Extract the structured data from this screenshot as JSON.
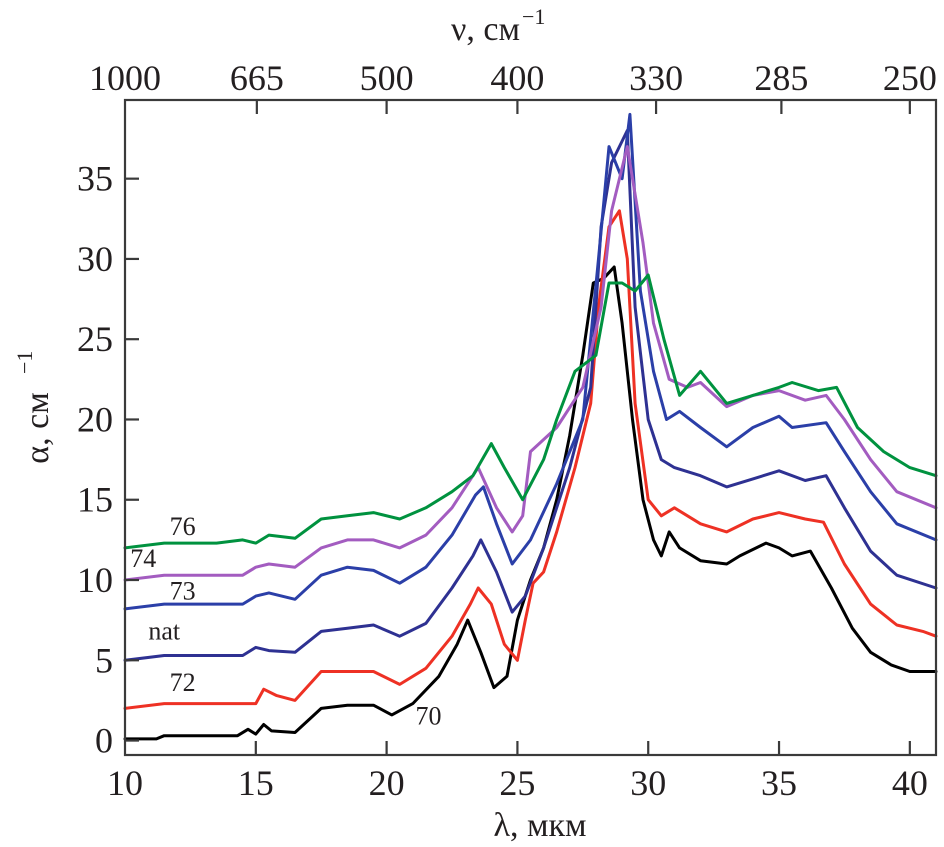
{
  "chart_data": {
    "type": "line",
    "title": "",
    "xlabel": "λ, мкм",
    "ylabel": "α, см",
    "ylabel_superscript": "−1",
    "x2label": "ν, см",
    "x2label_superscript": "−1",
    "xlim": [
      10,
      41
    ],
    "ylim": [
      -0.9,
      39.9
    ],
    "grid": false,
    "legend": "inline labels at left of each curve",
    "x_ticks": [
      10,
      15,
      20,
      25,
      30,
      35,
      40
    ],
    "x_tick_labels": [
      "10",
      "15",
      "20",
      "25",
      "30",
      "35",
      "40"
    ],
    "y_ticks": [
      0,
      5,
      10,
      15,
      20,
      25,
      30,
      35
    ],
    "y_tick_labels": [
      "0",
      "5",
      "10",
      "15",
      "20",
      "25",
      "30",
      "35"
    ],
    "x2_ticks_lambda": [
      10,
      15.04,
      20,
      25,
      30.3,
      35.09,
      40
    ],
    "x2_tick_labels": [
      "1000",
      "665",
      "500",
      "400",
      "330",
      "285",
      "250"
    ],
    "series": [
      {
        "name": "70",
        "color": "#000000",
        "label_at": [
          21.6,
          1.0
        ],
        "x": [
          10,
          11.2,
          11.5,
          14.3,
          14.7,
          15,
          15.3,
          15.6,
          16.5,
          17.5,
          18.5,
          19.5,
          20.2,
          21,
          22,
          22.7,
          23.1,
          23.6,
          24.1,
          24.6,
          25,
          25.5,
          26,
          26.5,
          27,
          27.5,
          27.9,
          28.3,
          28.7,
          29,
          29.4,
          29.8,
          30.2,
          30.5,
          30.8,
          31.2,
          32,
          33,
          33.5,
          34.5,
          35,
          35.5,
          36.2,
          37,
          37.8,
          38.5,
          39.3,
          40,
          41
        ],
        "y": [
          0.1,
          0.1,
          0.3,
          0.3,
          0.7,
          0.4,
          1.0,
          0.6,
          0.5,
          2.0,
          2.2,
          2.2,
          1.6,
          2.3,
          4.0,
          6.0,
          7.5,
          5.5,
          3.3,
          4.0,
          7.5,
          10,
          12,
          15,
          19,
          24,
          28.5,
          28.8,
          29.5,
          26,
          20,
          15,
          12.5,
          11.5,
          13,
          12,
          11.2,
          11.0,
          11.5,
          12.3,
          12.0,
          11.5,
          11.8,
          9.5,
          7.0,
          5.5,
          4.7,
          4.3,
          4.3
        ]
      },
      {
        "name": "72",
        "color": "#ee3124",
        "label_at": [
          12.2,
          3.1
        ],
        "x": [
          10,
          11.5,
          15,
          15.3,
          15.8,
          16.5,
          17.5,
          18.5,
          19.5,
          20.5,
          21.5,
          22.5,
          23.2,
          23.5,
          24,
          24.5,
          25,
          25.3,
          25.6,
          26,
          26.5,
          27.2,
          27.8,
          28.1,
          28.5,
          28.9,
          29.2,
          29.5,
          30,
          30.5,
          31,
          32,
          33,
          34,
          35,
          36,
          36.7,
          37.5,
          38.5,
          39.5,
          40.5,
          41
        ],
        "y": [
          2.0,
          2.3,
          2.3,
          3.2,
          2.8,
          2.5,
          4.3,
          4.3,
          4.3,
          3.5,
          4.5,
          6.5,
          8.5,
          9.5,
          8.5,
          6.0,
          5.0,
          7.5,
          9.8,
          10.5,
          13,
          17,
          21,
          27,
          32,
          33,
          30,
          21,
          15,
          14,
          14.5,
          13.5,
          13.0,
          13.8,
          14.2,
          13.8,
          13.6,
          11,
          8.5,
          7.2,
          6.8,
          6.5
        ]
      },
      {
        "name": "nat",
        "color": "#2e3192",
        "label_at": [
          11.5,
          6.3
        ],
        "x": [
          10,
          11.5,
          14.5,
          15,
          15.5,
          16.5,
          17.5,
          18.5,
          19.5,
          20.5,
          21.5,
          22.5,
          23.3,
          23.6,
          24.2,
          24.8,
          25.3,
          26,
          27,
          27.8,
          28.2,
          28.6,
          29.2,
          29.5,
          30,
          30.5,
          31,
          32,
          33,
          34,
          35,
          36,
          36.8,
          37.5,
          38.5,
          39.5,
          41
        ],
        "y": [
          5.0,
          5.3,
          5.3,
          5.8,
          5.6,
          5.5,
          6.8,
          7.0,
          7.2,
          6.5,
          7.3,
          9.5,
          11.5,
          12.5,
          10.5,
          8.0,
          9.0,
          12,
          17,
          22,
          32,
          36,
          38,
          27,
          20,
          17.5,
          17.0,
          16.5,
          15.8,
          16.3,
          16.8,
          16.2,
          16.5,
          14.5,
          11.8,
          10.3,
          9.5
        ]
      },
      {
        "name": "73",
        "color": "#2b3fa8",
        "label_at": [
          12.2,
          8.8
        ],
        "x": [
          10,
          11.5,
          14.5,
          15,
          15.5,
          16.5,
          17.5,
          18.5,
          19.5,
          20.5,
          21.5,
          22.5,
          23.4,
          23.7,
          24.2,
          24.8,
          25.5,
          26.5,
          27.5,
          28.1,
          28.5,
          29,
          29.3,
          29.7,
          30.2,
          30.7,
          31.2,
          32,
          33,
          34,
          35,
          35.5,
          36.8,
          37.5,
          38.5,
          39.5,
          41
        ],
        "y": [
          8.2,
          8.5,
          8.5,
          9.0,
          9.2,
          8.8,
          10.3,
          10.8,
          10.6,
          9.8,
          10.8,
          12.8,
          15.3,
          15.8,
          13.5,
          11.0,
          12.5,
          16,
          20,
          30,
          37,
          35,
          39,
          28,
          23,
          20,
          20.5,
          19.5,
          18.3,
          19.5,
          20.2,
          19.5,
          19.8,
          18,
          15.5,
          13.5,
          12.5
        ]
      },
      {
        "name": "74",
        "color": "#a35cc0",
        "label_at": [
          10.7,
          10.8
        ],
        "x": [
          10,
          11.5,
          14.5,
          15,
          15.5,
          16.5,
          17.5,
          18.5,
          19.5,
          20.5,
          21.5,
          22.5,
          23.5,
          24.2,
          24.8,
          25.2,
          25.5,
          26.5,
          27.5,
          28.2,
          28.6,
          29.2,
          29.8,
          30.2,
          30.8,
          31.5,
          32,
          33,
          34,
          35,
          36,
          36.8,
          37.5,
          38.5,
          39.5,
          41
        ],
        "y": [
          10.0,
          10.3,
          10.3,
          10.8,
          11.0,
          10.8,
          12.0,
          12.5,
          12.5,
          12.0,
          12.8,
          14.5,
          17.0,
          14.5,
          13.0,
          14.0,
          18.0,
          19.5,
          22,
          27,
          33,
          37,
          31,
          26,
          22.5,
          22.0,
          22.3,
          20.8,
          21.5,
          21.8,
          21.2,
          21.5,
          20,
          17.5,
          15.5,
          14.5
        ]
      },
      {
        "name": "76",
        "color": "#00923f",
        "label_at": [
          12.2,
          12.8
        ],
        "x": [
          10,
          11.5,
          13.5,
          14.5,
          15,
          15.5,
          16.5,
          17.5,
          18.5,
          19.5,
          20.5,
          21.5,
          22.5,
          23.3,
          24,
          24.5,
          25.2,
          26,
          26.5,
          27.2,
          28,
          28.5,
          29,
          29.5,
          30,
          30.6,
          31.2,
          32,
          33,
          34,
          35,
          35.5,
          36.5,
          37.2,
          38,
          39,
          40,
          41
        ],
        "y": [
          12.0,
          12.3,
          12.3,
          12.5,
          12.3,
          12.8,
          12.6,
          13.8,
          14.0,
          14.2,
          13.8,
          14.5,
          15.5,
          16.5,
          18.5,
          17.0,
          15.0,
          17.5,
          20,
          23,
          24,
          28.5,
          28.5,
          28.0,
          29,
          25,
          21.5,
          23.0,
          21.0,
          21.5,
          22.0,
          22.3,
          21.8,
          22.0,
          19.5,
          18.0,
          17.0,
          16.5
        ]
      }
    ]
  }
}
